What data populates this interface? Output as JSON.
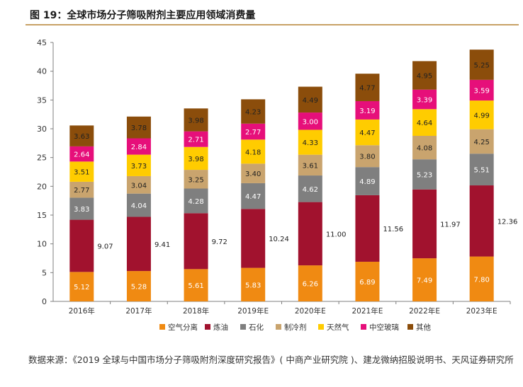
{
  "figure": {
    "title": "图 19：全球市场分子筛吸附剂主要应用领域消费量",
    "source": "数据来源：《2019 全球与中国市场分子筛吸附剂深度研究报告》( 中商产业研究院 )、建龙微纳招股说明书、天风证券研究所"
  },
  "chart_data": {
    "type": "bar",
    "stacked": true,
    "categories": [
      "2016年",
      "2017年",
      "2018年",
      "2019年E",
      "2020年E",
      "2021年E",
      "2022年E",
      "2023年E"
    ],
    "ylim": [
      0,
      45
    ],
    "yticks": [
      0,
      5,
      10,
      15,
      20,
      25,
      30,
      35,
      40,
      45
    ],
    "grid": false,
    "legend": "bottom",
    "series": [
      {
        "name": "空气分离",
        "color": "#f08a12",
        "values": [
          5.12,
          5.28,
          5.61,
          5.83,
          6.26,
          6.89,
          7.49,
          7.8
        ]
      },
      {
        "name": "炼油",
        "color": "#a1122e",
        "values": [
          9.07,
          9.41,
          9.72,
          10.24,
          11.0,
          11.56,
          11.97,
          12.36
        ]
      },
      {
        "name": "石化",
        "color": "#7f7f7f",
        "values": [
          3.83,
          4.04,
          4.28,
          4.47,
          4.62,
          4.89,
          5.23,
          5.51
        ]
      },
      {
        "name": "制冷剂",
        "color": "#c9a46e",
        "values": [
          2.77,
          3.04,
          3.25,
          3.4,
          3.61,
          3.8,
          4.08,
          4.25
        ]
      },
      {
        "name": "天然气",
        "color": "#ffcc00",
        "values": [
          3.51,
          3.73,
          3.98,
          4.18,
          4.33,
          4.47,
          4.64,
          4.99
        ]
      },
      {
        "name": "中空玻璃",
        "color": "#e60f7a",
        "values": [
          2.64,
          2.84,
          2.71,
          2.77,
          3.0,
          3.19,
          3.39,
          3.59
        ]
      },
      {
        "name": "其他",
        "color": "#8b4d0b",
        "values": [
          3.63,
          3.78,
          3.98,
          4.23,
          4.49,
          4.77,
          4.95,
          5.25
        ]
      }
    ]
  }
}
